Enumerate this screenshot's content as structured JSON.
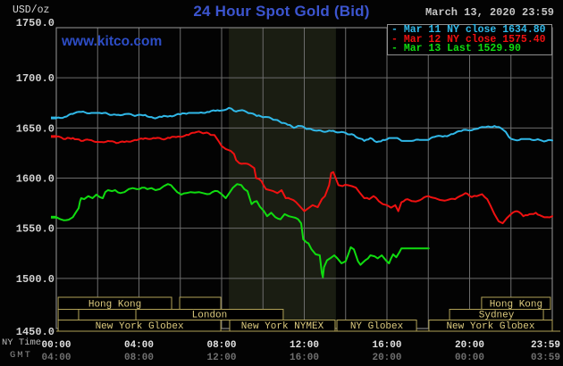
{
  "header": {
    "units": "USD/oz",
    "title": "24 Hour Spot Gold (Bid)",
    "datetime": "March 13, 2020 23:59",
    "watermark": "www.kitco.com"
  },
  "legend": {
    "items": [
      {
        "dash": "-",
        "text": "Mar 11 NY close 1634.80",
        "color": "#30b8e8"
      },
      {
        "dash": "-",
        "text": "Mar 12 NY close 1575.40",
        "color": "#ee1111"
      },
      {
        "dash": "-",
        "text": "Mar 13 Last 1529.90",
        "color": "#10dc10"
      }
    ]
  },
  "y_axis": {
    "tick_labels": [
      "1750.0",
      "1700.0",
      "1650.0",
      "1600.0",
      "1550.0",
      "1500.0",
      "1450.0"
    ],
    "tick_values": [
      1750,
      1700,
      1650,
      1600,
      1550,
      1500,
      1450
    ]
  },
  "x_axis": {
    "row1_label": "NY Time",
    "row2_label": "GMT",
    "ny_ticks": [
      {
        "t": 0,
        "label": "00:00"
      },
      {
        "t": 4,
        "label": "04:00"
      },
      {
        "t": 8,
        "label": "08:00"
      },
      {
        "t": 12,
        "label": "12:00"
      },
      {
        "t": 16,
        "label": "16:00"
      },
      {
        "t": 20,
        "label": "20:00"
      },
      {
        "t": 23.98,
        "label": "23:59",
        "align": "end"
      }
    ],
    "gmt_ticks": [
      {
        "t": 0,
        "label": "04:00"
      },
      {
        "t": 4,
        "label": "08:00"
      },
      {
        "t": 8,
        "label": "12:00"
      },
      {
        "t": 12,
        "label": "16:00"
      },
      {
        "t": 16,
        "label": "20:00"
      },
      {
        "t": 20,
        "label": "00:00"
      },
      {
        "t": 23.98,
        "label": "03:59",
        "align": "end"
      }
    ]
  },
  "sessions": {
    "rows": [
      {
        "boxes": [
          {
            "t1": 0.09,
            "t2": 5.58,
            "label": "Hong Kong"
          },
          {
            "t1": 5.97,
            "t2": 7.96,
            "label": ""
          },
          {
            "t1": 20.58,
            "t2": 23.91,
            "label": "Hong Kong"
          }
        ]
      },
      {
        "boxes": [
          {
            "t1": 0.09,
            "t2": 1.08,
            "label": ""
          },
          {
            "t1": 1.08,
            "t2": 3.85,
            "label": ""
          },
          {
            "t1": 3.85,
            "t2": 10.98,
            "label": "London"
          },
          {
            "t1": 19.03,
            "t2": 23.57,
            "label": "Sydney"
          }
        ]
      },
      {
        "boxes": [
          {
            "t1": 0.09,
            "t2": 7.96,
            "label": "New York Globex"
          },
          {
            "t1": 8.39,
            "t2": 13.49,
            "label": "New York NYMEX"
          },
          {
            "t1": 13.58,
            "t2": 17.43,
            "label": "NY Globex"
          },
          {
            "t1": 18.03,
            "t2": 24.0,
            "label": "New York Globex"
          }
        ]
      }
    ]
  },
  "chart_data": {
    "type": "line",
    "title": "24 Hour Spot Gold (Bid)",
    "xlabel": "NY Time (hours)",
    "ylabel": "USD/oz",
    "xlim": [
      0,
      24
    ],
    "ylim": [
      1450,
      1750
    ],
    "grid": "on",
    "legend_position": "top-right",
    "bands": [
      {
        "t1": 8.35,
        "t2": 13.53,
        "name": "nymex-floor-session"
      }
    ],
    "series": [
      {
        "name": "Mar 11",
        "close": 1634.8,
        "color": "#30b8e8",
        "points": [
          [
            0,
            1660
          ],
          [
            0.4,
            1661
          ],
          [
            0.8,
            1664
          ],
          [
            1.2,
            1666
          ],
          [
            1.7,
            1665
          ],
          [
            2.1,
            1665
          ],
          [
            2.5,
            1664
          ],
          [
            2.9,
            1663
          ],
          [
            3.4,
            1664
          ],
          [
            3.8,
            1662
          ],
          [
            4.3,
            1663
          ],
          [
            4.7,
            1660
          ],
          [
            5.1,
            1661
          ],
          [
            5.5,
            1662
          ],
          [
            6,
            1663.5
          ],
          [
            6.4,
            1665
          ],
          [
            6.9,
            1665
          ],
          [
            7.3,
            1666
          ],
          [
            7.7,
            1667
          ],
          [
            8,
            1667.5
          ],
          [
            8.35,
            1670
          ],
          [
            8.6,
            1667
          ],
          [
            8.9,
            1667.5
          ],
          [
            9.2,
            1666
          ],
          [
            9.7,
            1662
          ],
          [
            10.1,
            1661
          ],
          [
            10.6,
            1658
          ],
          [
            11,
            1655
          ],
          [
            11.3,
            1653
          ],
          [
            11.5,
            1650
          ],
          [
            11.8,
            1652
          ],
          [
            12.1,
            1649
          ],
          [
            12.5,
            1647.5
          ],
          [
            13,
            1646
          ],
          [
            13.3,
            1647
          ],
          [
            13.6,
            1645.5
          ],
          [
            14,
            1645
          ],
          [
            14.4,
            1643
          ],
          [
            14.9,
            1637
          ],
          [
            15.2,
            1640
          ],
          [
            15.5,
            1636
          ],
          [
            15.8,
            1638
          ],
          [
            16.1,
            1640
          ],
          [
            16.4,
            1640
          ],
          [
            16.8,
            1637
          ],
          [
            17.2,
            1637
          ],
          [
            17.6,
            1638
          ],
          [
            18,
            1638
          ],
          [
            18.3,
            1641
          ],
          [
            18.8,
            1642
          ],
          [
            19.2,
            1644
          ],
          [
            19.6,
            1647
          ],
          [
            20.3,
            1649
          ],
          [
            20.8,
            1651
          ],
          [
            21.2,
            1652
          ],
          [
            21.5,
            1650
          ],
          [
            21.75,
            1646
          ],
          [
            21.9,
            1641
          ],
          [
            22.2,
            1638
          ],
          [
            22.5,
            1639
          ],
          [
            22.9,
            1639
          ],
          [
            23.4,
            1638
          ],
          [
            23.7,
            1637
          ],
          [
            24,
            1637.5
          ]
        ]
      },
      {
        "name": "Mar 12",
        "close": 1575.4,
        "color": "#ee1111",
        "points": [
          [
            0,
            1641.5
          ],
          [
            0.35,
            1639
          ],
          [
            0.8,
            1640
          ],
          [
            1.2,
            1637
          ],
          [
            1.6,
            1638
          ],
          [
            2.1,
            1636
          ],
          [
            2.5,
            1637
          ],
          [
            2.9,
            1635
          ],
          [
            3.3,
            1636
          ],
          [
            3.8,
            1638
          ],
          [
            4.2,
            1639
          ],
          [
            4.7,
            1640
          ],
          [
            5.1,
            1639
          ],
          [
            5.5,
            1640
          ],
          [
            5.9,
            1641.5
          ],
          [
            6.4,
            1643
          ],
          [
            6.8,
            1646
          ],
          [
            7.2,
            1645
          ],
          [
            7.65,
            1643
          ],
          [
            7.85,
            1637
          ],
          [
            8,
            1632
          ],
          [
            8.2,
            1629
          ],
          [
            8.45,
            1627
          ],
          [
            8.6,
            1624
          ],
          [
            8.7,
            1618
          ],
          [
            8.85,
            1615
          ],
          [
            9.37,
            1613
          ],
          [
            9.58,
            1610
          ],
          [
            9.67,
            1600
          ],
          [
            9.93,
            1597
          ],
          [
            10.15,
            1589
          ],
          [
            10.5,
            1587
          ],
          [
            10.7,
            1585
          ],
          [
            10.9,
            1588
          ],
          [
            11.1,
            1580
          ],
          [
            11.35,
            1579
          ],
          [
            11.6,
            1576
          ],
          [
            11.8,
            1571.5
          ],
          [
            12,
            1567
          ],
          [
            12.2,
            1570
          ],
          [
            12.4,
            1573
          ],
          [
            12.65,
            1571
          ],
          [
            12.85,
            1579
          ],
          [
            13,
            1582
          ],
          [
            13.2,
            1593
          ],
          [
            13.3,
            1605
          ],
          [
            13.4,
            1606
          ],
          [
            13.5,
            1601
          ],
          [
            13.65,
            1593
          ],
          [
            13.85,
            1592
          ],
          [
            14.1,
            1593
          ],
          [
            14.3,
            1592
          ],
          [
            14.5,
            1590.5
          ],
          [
            14.7,
            1585
          ],
          [
            14.9,
            1580
          ],
          [
            15.15,
            1579
          ],
          [
            15.35,
            1582
          ],
          [
            15.6,
            1577
          ],
          [
            15.8,
            1574
          ],
          [
            16,
            1573
          ],
          [
            16.2,
            1570.5
          ],
          [
            16.4,
            1573
          ],
          [
            16.55,
            1567
          ],
          [
            16.7,
            1576
          ],
          [
            17,
            1579
          ],
          [
            17.2,
            1577
          ],
          [
            17.6,
            1578
          ],
          [
            18,
            1582
          ],
          [
            18.45,
            1579
          ],
          [
            18.9,
            1578
          ],
          [
            19.3,
            1579
          ],
          [
            19.65,
            1583
          ],
          [
            19.8,
            1585
          ],
          [
            20.1,
            1581
          ],
          [
            20.35,
            1582
          ],
          [
            20.6,
            1584
          ],
          [
            20.85,
            1579
          ],
          [
            21,
            1573
          ],
          [
            21.2,
            1564
          ],
          [
            21.4,
            1557
          ],
          [
            21.6,
            1555
          ],
          [
            21.8,
            1560
          ],
          [
            22,
            1564
          ],
          [
            22.3,
            1567
          ],
          [
            22.6,
            1562
          ],
          [
            22.9,
            1564
          ],
          [
            23.2,
            1565.5
          ],
          [
            23.5,
            1562
          ],
          [
            23.75,
            1561
          ],
          [
            24,
            1562
          ]
        ]
      },
      {
        "name": "Mar 13",
        "close": 1529.9,
        "color": "#10dc10",
        "points": [
          [
            0,
            1561
          ],
          [
            0.2,
            1559
          ],
          [
            0.35,
            1558
          ],
          [
            0.6,
            1558.5
          ],
          [
            0.8,
            1561
          ],
          [
            0.95,
            1566
          ],
          [
            1.08,
            1570
          ],
          [
            1.15,
            1577
          ],
          [
            1.2,
            1580
          ],
          [
            1.35,
            1579
          ],
          [
            1.55,
            1582
          ],
          [
            1.75,
            1580
          ],
          [
            1.94,
            1583.5
          ],
          [
            2.1,
            1581
          ],
          [
            2.25,
            1580
          ],
          [
            2.37,
            1586
          ],
          [
            2.5,
            1588
          ],
          [
            2.7,
            1587
          ],
          [
            2.85,
            1588
          ],
          [
            3.1,
            1585
          ],
          [
            3.3,
            1586
          ],
          [
            3.5,
            1589
          ],
          [
            3.7,
            1590
          ],
          [
            3.9,
            1589
          ],
          [
            4.15,
            1590.5
          ],
          [
            4.4,
            1589
          ],
          [
            4.6,
            1590
          ],
          [
            4.8,
            1588
          ],
          [
            5,
            1589
          ],
          [
            5.2,
            1592
          ],
          [
            5.4,
            1594
          ],
          [
            5.55,
            1593
          ],
          [
            5.65,
            1590.5
          ],
          [
            5.85,
            1586
          ],
          [
            6.05,
            1583.5
          ],
          [
            6.3,
            1585
          ],
          [
            6.5,
            1586
          ],
          [
            6.7,
            1585.5
          ],
          [
            6.9,
            1586
          ],
          [
            7.1,
            1585
          ],
          [
            7.3,
            1584
          ],
          [
            7.55,
            1586
          ],
          [
            7.8,
            1587
          ],
          [
            8,
            1584
          ],
          [
            8.2,
            1580
          ],
          [
            8.4,
            1586
          ],
          [
            8.55,
            1590.5
          ],
          [
            8.75,
            1594
          ],
          [
            8.95,
            1593
          ],
          [
            9.1,
            1589
          ],
          [
            9.25,
            1587
          ],
          [
            9.45,
            1574
          ],
          [
            9.7,
            1577
          ],
          [
            9.85,
            1571.5
          ],
          [
            10.05,
            1567
          ],
          [
            10.2,
            1562
          ],
          [
            10.4,
            1565.5
          ],
          [
            10.6,
            1561
          ],
          [
            10.85,
            1559
          ],
          [
            11.05,
            1564
          ],
          [
            11.25,
            1562
          ],
          [
            11.45,
            1561
          ],
          [
            11.7,
            1559
          ],
          [
            11.85,
            1555
          ],
          [
            11.95,
            1539
          ],
          [
            12.1,
            1536
          ],
          [
            12.2,
            1535
          ],
          [
            12.35,
            1529
          ],
          [
            12.55,
            1524
          ],
          [
            12.75,
            1523
          ],
          [
            12.85,
            1505
          ],
          [
            12.9,
            1501
          ],
          [
            12.95,
            1511
          ],
          [
            13.1,
            1518
          ],
          [
            13.25,
            1520
          ],
          [
            13.45,
            1523
          ],
          [
            13.6,
            1520
          ],
          [
            13.8,
            1515
          ],
          [
            14,
            1517
          ],
          [
            14.25,
            1531
          ],
          [
            14.4,
            1529
          ],
          [
            14.6,
            1517
          ],
          [
            14.72,
            1513.5
          ],
          [
            14.95,
            1518
          ],
          [
            15.2,
            1523
          ],
          [
            15.4,
            1522
          ],
          [
            15.55,
            1520
          ],
          [
            15.75,
            1523
          ],
          [
            15.95,
            1518
          ],
          [
            16.1,
            1515
          ],
          [
            16.2,
            1520
          ],
          [
            16.3,
            1524
          ],
          [
            16.45,
            1521
          ],
          [
            16.6,
            1526
          ],
          [
            16.7,
            1529.9
          ],
          [
            18.02,
            1529.9
          ]
        ]
      }
    ]
  },
  "colors": {
    "grid": "#6c6c6c",
    "border": "#989898",
    "band": "#1a1d12",
    "session_border": "#b1a257",
    "session_text": "#dcca7e",
    "axis_value_text": "#d2d2d2",
    "ny_tick_text": "#e2e2e2",
    "gmt_tick_text": "#707070"
  }
}
